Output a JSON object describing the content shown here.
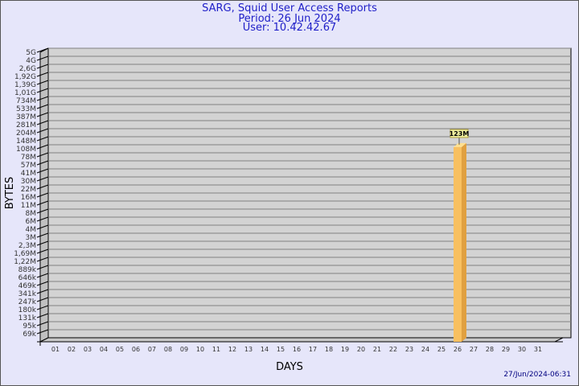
{
  "chart_data": {
    "type": "bar",
    "title": "SARG, Squid User Access Reports",
    "subtitle": [
      "Period: 26 Jun 2024",
      "User: 10.42.42.67"
    ],
    "xlabel": "DAYS",
    "ylabel": "BYTES",
    "categories": [
      "01",
      "02",
      "03",
      "04",
      "05",
      "06",
      "07",
      "08",
      "09",
      "10",
      "11",
      "12",
      "13",
      "14",
      "15",
      "16",
      "17",
      "18",
      "19",
      "20",
      "21",
      "22",
      "23",
      "24",
      "25",
      "26",
      "27",
      "28",
      "29",
      "30",
      "31"
    ],
    "y_tick_labels": [
      "5G",
      "4G",
      "2,6G",
      "1,92G",
      "1,39G",
      "1,01G",
      "734M",
      "533M",
      "387M",
      "281M",
      "204M",
      "148M",
      "108M",
      "78M",
      "57M",
      "41M",
      "30M",
      "22M",
      "16M",
      "11M",
      "8M",
      "6M",
      "4M",
      "3M",
      "2,3M",
      "1,69M",
      "1,22M",
      "889k",
      "646k",
      "469k",
      "341k",
      "247k",
      "180k",
      "131k",
      "95k",
      "69k"
    ],
    "series": [
      {
        "values": [
          null,
          null,
          null,
          null,
          null,
          null,
          null,
          null,
          null,
          null,
          null,
          null,
          null,
          null,
          null,
          null,
          null,
          null,
          null,
          null,
          null,
          null,
          null,
          null,
          null,
          "123M",
          null,
          null,
          null,
          null,
          null
        ]
      }
    ],
    "grid": true,
    "bar_color": "#f8c060",
    "bar_side_color": "#e0a040",
    "wall_color": "#d3d3d3"
  },
  "footer": "27/Jun/2024-06:31"
}
